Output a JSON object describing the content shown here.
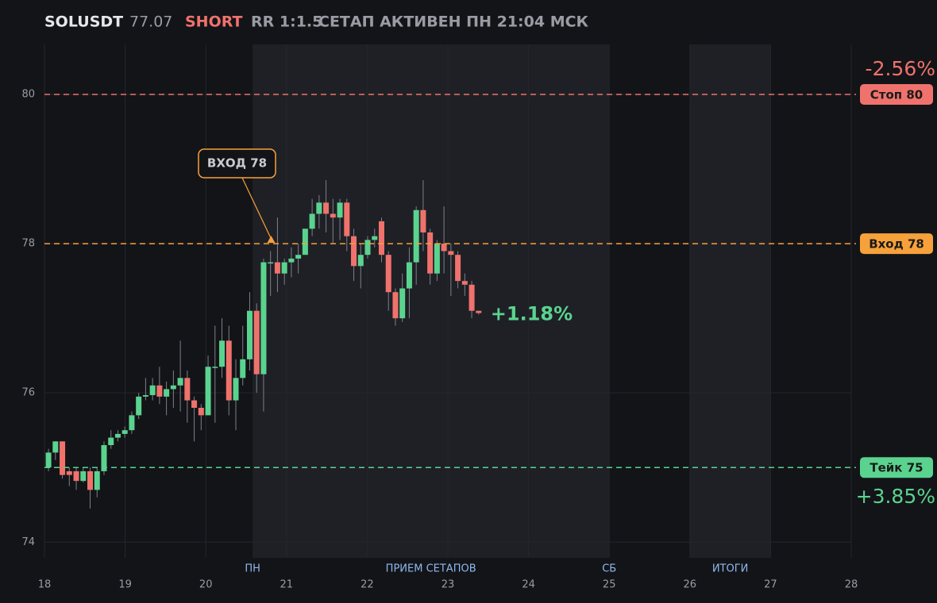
{
  "chart_data": {
    "type": "candlestick",
    "header": {
      "symbol": "SOLUSDT",
      "last_price": 77.07,
      "side": "SHORT",
      "rr": "RR 1:1.5",
      "status": "СЕТАП АКТИВЕН ПН 21:04 МСК"
    },
    "xlim": [
      18,
      28
    ],
    "ylim": [
      73.79,
      80.67
    ],
    "xticks": [
      18,
      19,
      20,
      21,
      22,
      23,
      24,
      25,
      26,
      27,
      28
    ],
    "yticks": [
      74,
      76,
      78,
      80
    ],
    "grid": true,
    "up_color": "#5ad38f",
    "down_color": "#f0726d",
    "bands": [
      {
        "start": 20.58,
        "end": 25,
        "label": "ПРИЕМ СЕТАПОВ"
      },
      {
        "start": 26,
        "end": 27,
        "label": "ИТОГИ"
      }
    ],
    "markers": [
      {
        "x": 20.58,
        "label": "ПН"
      },
      {
        "x": 25,
        "label": "СБ"
      }
    ],
    "levels": [
      {
        "value": 80,
        "label": "Стоп 80",
        "pct": "-2.56%",
        "color": "#f0726d"
      },
      {
        "value": 78,
        "label": "Вход 78",
        "color": "#f7a13b"
      },
      {
        "value": 75,
        "label": "Тейк 75",
        "pct": "+3.85%",
        "color": "#5ad38f"
      }
    ],
    "annotation": {
      "text": "ВХОД 78",
      "x": 20.81,
      "y": 78
    },
    "current_pct": "+1.18%",
    "x": [
      18.05,
      18.136,
      18.222,
      18.308,
      18.394,
      18.48,
      18.566,
      18.652,
      18.738,
      18.824,
      18.91,
      18.996,
      19.082,
      19.168,
      19.254,
      19.34,
      19.426,
      19.512,
      19.598,
      19.684,
      19.77,
      19.856,
      19.942,
      20.028,
      20.114,
      20.2,
      20.286,
      20.372,
      20.458,
      20.544,
      20.63,
      20.716,
      20.802,
      20.888,
      20.974,
      21.06,
      21.146,
      21.232,
      21.318,
      21.404,
      21.49,
      21.576,
      21.662,
      21.748,
      21.834,
      21.92,
      22.006,
      22.092,
      22.178,
      22.264,
      22.35,
      22.436,
      22.522,
      22.608,
      22.694,
      22.78,
      22.866,
      22.952,
      23.038,
      23.124,
      23.21,
      23.296,
      23.382
    ],
    "open": [
      75.0,
      75.2,
      75.35,
      74.95,
      74.95,
      74.82,
      74.95,
      74.7,
      74.95,
      75.3,
      75.4,
      75.45,
      75.5,
      75.7,
      75.95,
      75.97,
      76.1,
      75.95,
      76.05,
      76.1,
      76.2,
      75.9,
      75.8,
      75.7,
      76.35,
      76.35,
      76.7,
      75.9,
      76.2,
      76.45,
      77.1,
      76.25,
      77.75,
      77.75,
      77.6,
      77.75,
      77.8,
      77.85,
      78.2,
      78.4,
      78.55,
      78.4,
      78.35,
      78.55,
      78.1,
      77.7,
      77.85,
      78.05,
      78.3,
      77.85,
      77.35,
      77.0,
      77.4,
      77.75,
      78.45,
      78.15,
      77.6,
      78.0,
      77.9,
      77.85,
      77.5,
      77.45,
      77.1
    ],
    "high": [
      75.25,
      75.35,
      75.35,
      75.0,
      75.0,
      75.0,
      75.0,
      75.0,
      75.35,
      75.5,
      75.5,
      75.55,
      75.75,
      76.0,
      76.2,
      76.2,
      76.35,
      76.15,
      76.3,
      76.7,
      76.3,
      75.95,
      75.85,
      76.5,
      76.9,
      77.0,
      76.9,
      76.45,
      76.9,
      77.35,
      77.2,
      77.8,
      77.9,
      78.35,
      77.8,
      77.95,
      78.0,
      78.2,
      78.6,
      78.65,
      78.85,
      78.6,
      78.6,
      78.6,
      78.2,
      78.0,
      78.1,
      78.2,
      78.35,
      77.9,
      77.4,
      77.6,
      77.95,
      78.5,
      78.85,
      78.2,
      78.05,
      78.5,
      78.0,
      77.9,
      77.6,
      77.5,
      77.1
    ],
    "low": [
      74.95,
      75.1,
      74.85,
      74.75,
      74.7,
      74.8,
      74.45,
      74.6,
      74.9,
      75.25,
      75.35,
      75.4,
      75.45,
      75.65,
      75.9,
      75.9,
      75.85,
      75.7,
      75.8,
      75.75,
      75.6,
      75.35,
      75.5,
      75.7,
      75.6,
      76.2,
      75.7,
      75.5,
      76.1,
      76.3,
      76.0,
      75.75,
      77.3,
      77.35,
      77.45,
      77.55,
      77.6,
      77.85,
      78.1,
      78.2,
      78.15,
      78.0,
      78.05,
      77.9,
      77.5,
      77.4,
      77.8,
      77.95,
      77.75,
      77.1,
      76.9,
      76.95,
      77.0,
      77.45,
      77.9,
      77.45,
      77.5,
      77.6,
      77.3,
      77.4,
      77.3,
      77.0,
      77.05
    ],
    "close": [
      75.2,
      75.35,
      74.9,
      74.9,
      74.82,
      74.95,
      74.7,
      74.95,
      75.3,
      75.4,
      75.45,
      75.5,
      75.7,
      75.95,
      75.97,
      76.1,
      75.95,
      76.05,
      76.1,
      76.2,
      75.9,
      75.8,
      75.7,
      76.35,
      76.35,
      76.7,
      75.9,
      76.2,
      76.45,
      77.1,
      76.25,
      77.75,
      77.75,
      77.6,
      77.75,
      77.8,
      77.85,
      78.2,
      78.4,
      78.55,
      78.4,
      78.35,
      78.55,
      78.1,
      77.7,
      77.85,
      78.05,
      78.1,
      77.85,
      77.35,
      77.0,
      77.4,
      77.75,
      78.45,
      78.15,
      77.6,
      78.0,
      77.9,
      77.85,
      77.5,
      77.45,
      77.1,
      77.07
    ]
  }
}
